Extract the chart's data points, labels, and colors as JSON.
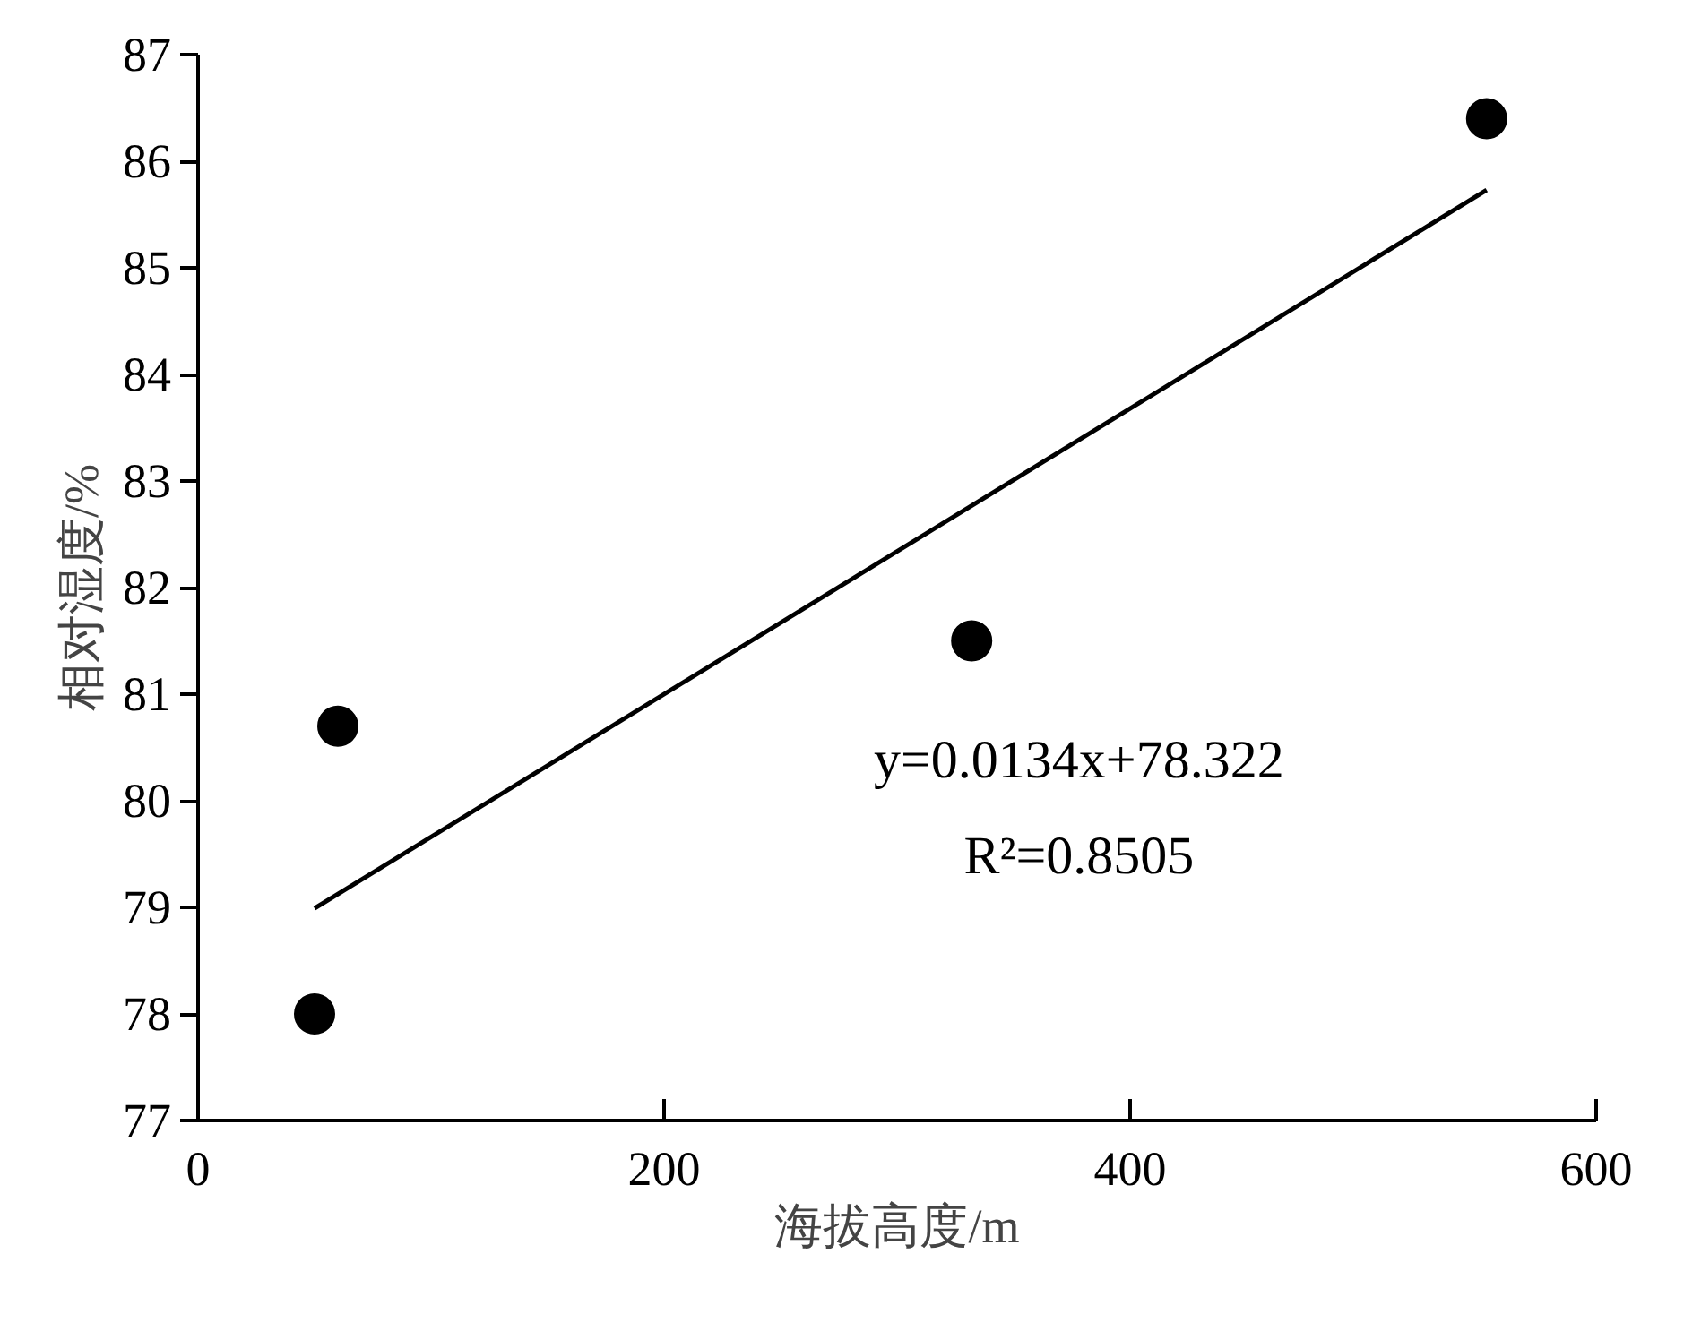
{
  "chart_data": {
    "type": "scatter",
    "xlabel": "海拔高度/m",
    "ylabel": "相对湿度/%",
    "xlim": [
      0,
      600
    ],
    "xticks": [
      0,
      200,
      400,
      600
    ],
    "ylim": [
      77,
      87
    ],
    "yticks": [
      77,
      78,
      79,
      80,
      81,
      82,
      83,
      84,
      85,
      86,
      87
    ],
    "grid": false,
    "series": [
      {
        "marker": "circle",
        "color": "#000000",
        "x": [
          50,
          60,
          332,
          553
        ],
        "values": [
          78.0,
          80.7,
          81.5,
          86.4
        ]
      },
      {
        "type": "line",
        "color": "#000000",
        "x": [
          50,
          553
        ],
        "values": [
          78.99,
          85.73
        ]
      }
    ],
    "annotations": [
      "y=0.0134x+78.322",
      "R²=0.8505"
    ]
  }
}
